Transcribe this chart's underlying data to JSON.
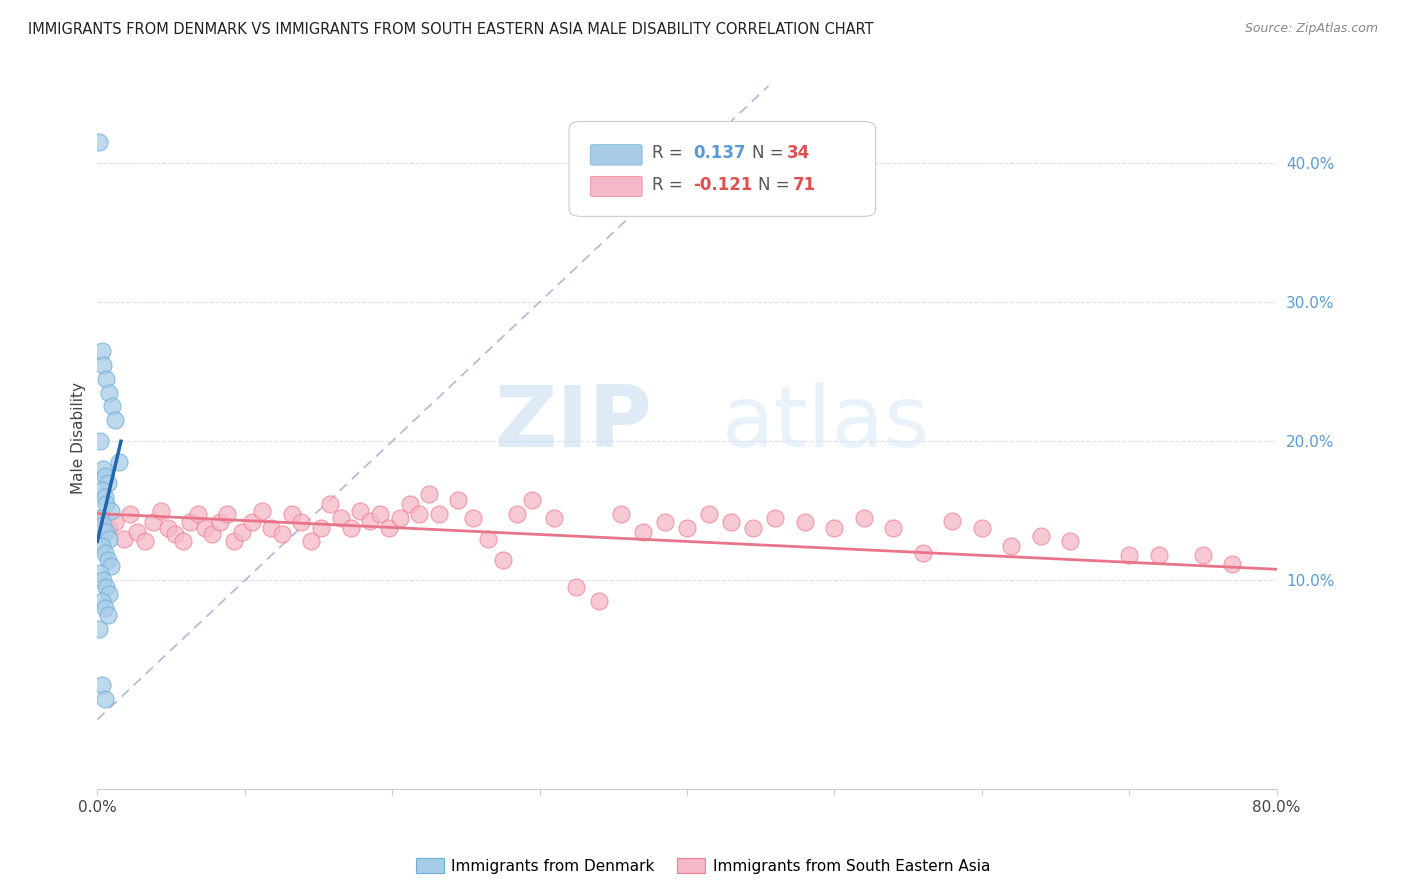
{
  "title": "IMMIGRANTS FROM DENMARK VS IMMIGRANTS FROM SOUTH EASTERN ASIA MALE DISABILITY CORRELATION CHART",
  "source": "Source: ZipAtlas.com",
  "ylabel": "Male Disability",
  "xlim": [
    0.0,
    0.8
  ],
  "ylim": [
    -0.05,
    0.455
  ],
  "y_ticks_right": [
    0.1,
    0.2,
    0.3,
    0.4
  ],
  "y_tick_labels_right": [
    "10.0%",
    "20.0%",
    "30.0%",
    "40.0%"
  ],
  "watermark_zip": "ZIP",
  "watermark_atlas": "atlas",
  "legend1_r": "R =  0.137",
  "legend1_n": "N = 34",
  "legend2_r": "R = -0.121",
  "legend2_n": "N = 71",
  "trendline1_color": "#2166ac",
  "trendline2_color": "#e8748a",
  "refline_color": "#b0b8d8",
  "scatter_blue_color": "#a8cce8",
  "scatter_pink_color": "#f5b8c8",
  "scatter_blue_edge": "#6baed6",
  "scatter_pink_edge": "#f08090",
  "denmark_x": [
    0.001,
    0.003,
    0.004,
    0.006,
    0.008,
    0.01,
    0.012,
    0.015,
    0.002,
    0.004,
    0.005,
    0.007,
    0.003,
    0.005,
    0.006,
    0.009,
    0.002,
    0.004,
    0.006,
    0.008,
    0.003,
    0.005,
    0.007,
    0.009,
    0.002,
    0.004,
    0.006,
    0.008,
    0.003,
    0.005,
    0.007,
    0.001,
    0.003,
    0.005
  ],
  "denmark_y": [
    0.415,
    0.265,
    0.255,
    0.245,
    0.235,
    0.225,
    0.215,
    0.185,
    0.2,
    0.18,
    0.175,
    0.17,
    0.165,
    0.16,
    0.155,
    0.15,
    0.145,
    0.14,
    0.135,
    0.13,
    0.125,
    0.12,
    0.115,
    0.11,
    0.105,
    0.1,
    0.095,
    0.09,
    0.085,
    0.08,
    0.075,
    0.065,
    0.025,
    0.015
  ],
  "sea_x": [
    0.003,
    0.008,
    0.012,
    0.018,
    0.022,
    0.027,
    0.032,
    0.038,
    0.043,
    0.048,
    0.053,
    0.058,
    0.063,
    0.068,
    0.073,
    0.078,
    0.083,
    0.088,
    0.093,
    0.098,
    0.105,
    0.112,
    0.118,
    0.125,
    0.132,
    0.138,
    0.145,
    0.152,
    0.158,
    0.165,
    0.172,
    0.178,
    0.185,
    0.192,
    0.198,
    0.205,
    0.212,
    0.218,
    0.225,
    0.232,
    0.245,
    0.255,
    0.265,
    0.275,
    0.285,
    0.295,
    0.31,
    0.325,
    0.34,
    0.355,
    0.37,
    0.385,
    0.4,
    0.415,
    0.43,
    0.445,
    0.46,
    0.48,
    0.5,
    0.52,
    0.54,
    0.56,
    0.58,
    0.6,
    0.62,
    0.64,
    0.66,
    0.7,
    0.72,
    0.75,
    0.77
  ],
  "sea_y": [
    0.145,
    0.138,
    0.142,
    0.13,
    0.148,
    0.135,
    0.128,
    0.142,
    0.15,
    0.138,
    0.133,
    0.128,
    0.142,
    0.148,
    0.138,
    0.133,
    0.142,
    0.148,
    0.128,
    0.135,
    0.142,
    0.15,
    0.138,
    0.133,
    0.148,
    0.142,
    0.128,
    0.138,
    0.155,
    0.145,
    0.138,
    0.15,
    0.143,
    0.148,
    0.138,
    0.145,
    0.155,
    0.148,
    0.162,
    0.148,
    0.158,
    0.145,
    0.13,
    0.115,
    0.148,
    0.158,
    0.145,
    0.095,
    0.085,
    0.148,
    0.135,
    0.142,
    0.138,
    0.148,
    0.142,
    0.138,
    0.145,
    0.142,
    0.138,
    0.145,
    0.138,
    0.12,
    0.143,
    0.138,
    0.125,
    0.132,
    0.128,
    0.118,
    0.118,
    0.118,
    0.112
  ],
  "dk_trend_x": [
    0.0,
    0.016
  ],
  "dk_trend_y": [
    0.128,
    0.2
  ],
  "sea_trend_x": [
    0.0,
    0.8
  ],
  "sea_trend_y": [
    0.148,
    0.108
  ]
}
